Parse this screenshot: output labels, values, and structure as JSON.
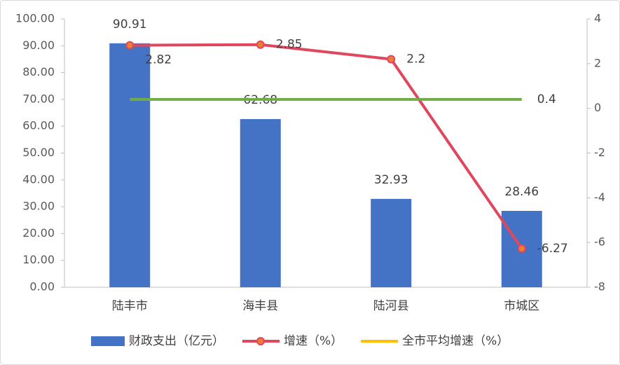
{
  "chart_data": {
    "type": "bar-line",
    "categories": [
      "陆丰市",
      "海丰县",
      "陆河县",
      "市城区"
    ],
    "ylim": [
      0,
      100
    ],
    "yticks": [
      {
        "value": 0,
        "label": "0.00"
      },
      {
        "value": 10,
        "label": "10.00"
      },
      {
        "value": 20,
        "label": "20.00"
      },
      {
        "value": 30,
        "label": "30.00"
      },
      {
        "value": 40,
        "label": "40.00"
      },
      {
        "value": 50,
        "label": "50.00"
      },
      {
        "value": 60,
        "label": "60.00"
      },
      {
        "value": 70,
        "label": "70.00"
      },
      {
        "value": 80,
        "label": "80.00"
      },
      {
        "value": 90,
        "label": "90.00"
      },
      {
        "value": 100,
        "label": "100.00"
      }
    ],
    "y2lim": [
      -8,
      4
    ],
    "y2ticks": [
      -8,
      -6,
      -4,
      -2,
      0,
      2,
      4
    ],
    "legend": "bottom",
    "series": [
      {
        "name": "财政支出（亿元）",
        "type": "bar",
        "color": "#4472c4",
        "values": [
          90.91,
          62.68,
          32.93,
          28.46
        ]
      },
      {
        "name": "增速（%）",
        "type": "line",
        "axis": "y2",
        "color": "#e0475e",
        "marker_color": "#ed7d31",
        "values": [
          2.82,
          2.85,
          2.2,
          -6.27
        ]
      },
      {
        "name": "全市平均增速（%）",
        "type": "line",
        "axis": "y2",
        "color": "#70ad47",
        "legend_color": "#ffc000",
        "values": [
          0.4,
          0.4,
          0.4,
          0.4
        ],
        "value_labels": [
          null,
          null,
          null,
          "0.4"
        ]
      }
    ]
  }
}
